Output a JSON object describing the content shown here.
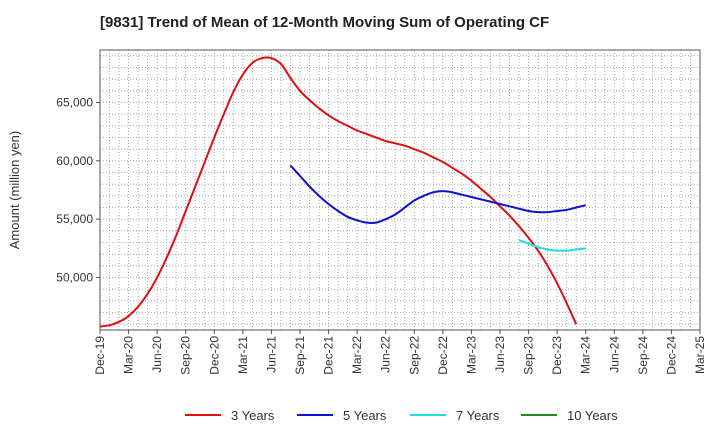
{
  "chart_data": {
    "type": "line",
    "title": "[9831]  Trend of Mean of 12-Month Moving Sum of Operating CF",
    "xlabel": "",
    "ylabel": "Amount (million yen)",
    "ylim": [
      45500,
      69500
    ],
    "yticks": [
      50000,
      55000,
      60000,
      65000
    ],
    "ytick_labels": [
      "50,000",
      "55,000",
      "60,000",
      "65,000"
    ],
    "xlim": [
      "Dec-19",
      "Mar-25"
    ],
    "xtick_labels": [
      "Dec-19",
      "Mar-20",
      "Jun-20",
      "Sep-20",
      "Dec-20",
      "Mar-21",
      "Jun-21",
      "Sep-21",
      "Dec-21",
      "Mar-22",
      "Jun-22",
      "Sep-22",
      "Dec-22",
      "Mar-23",
      "Jun-23",
      "Sep-23",
      "Dec-23",
      "Mar-24",
      "Jun-24",
      "Sep-24",
      "Dec-24",
      "Mar-25"
    ],
    "grid": true,
    "series": [
      {
        "name": "3 Years",
        "color": "#dd1111",
        "points": [
          [
            "Dec-19",
            45800
          ],
          [
            "Jan-20",
            45900
          ],
          [
            "Feb-20",
            46200
          ],
          [
            "Mar-20",
            46700
          ],
          [
            "Apr-20",
            47500
          ],
          [
            "May-20",
            48600
          ],
          [
            "Jun-20",
            50000
          ],
          [
            "Jul-20",
            51700
          ],
          [
            "Aug-20",
            53600
          ],
          [
            "Sep-20",
            55700
          ],
          [
            "Oct-20",
            57800
          ],
          [
            "Nov-20",
            59900
          ],
          [
            "Dec-20",
            62000
          ],
          [
            "Jan-21",
            64000
          ],
          [
            "Feb-21",
            65900
          ],
          [
            "Mar-21",
            67400
          ],
          [
            "Apr-21",
            68400
          ],
          [
            "May-21",
            68800
          ],
          [
            "Jun-21",
            68800
          ],
          [
            "Jul-21",
            68300
          ],
          [
            "Aug-21",
            67100
          ],
          [
            "Sep-21",
            66000
          ],
          [
            "Oct-21",
            65200
          ],
          [
            "Nov-21",
            64500
          ],
          [
            "Dec-21",
            63900
          ],
          [
            "Jan-22",
            63400
          ],
          [
            "Feb-22",
            63000
          ],
          [
            "Mar-22",
            62600
          ],
          [
            "Apr-22",
            62300
          ],
          [
            "May-22",
            62000
          ],
          [
            "Jun-22",
            61700
          ],
          [
            "Jul-22",
            61500
          ],
          [
            "Aug-22",
            61300
          ],
          [
            "Sep-22",
            61000
          ],
          [
            "Oct-22",
            60700
          ],
          [
            "Nov-22",
            60300
          ],
          [
            "Dec-22",
            59900
          ],
          [
            "Jan-23",
            59400
          ],
          [
            "Feb-23",
            58900
          ],
          [
            "Mar-23",
            58300
          ],
          [
            "Apr-23",
            57600
          ],
          [
            "May-23",
            56900
          ],
          [
            "Jun-23",
            56100
          ],
          [
            "Jul-23",
            55300
          ],
          [
            "Aug-23",
            54400
          ],
          [
            "Sep-23",
            53400
          ],
          [
            "Oct-23",
            52300
          ],
          [
            "Nov-23",
            51000
          ],
          [
            "Dec-23",
            49500
          ],
          [
            "Jan-24",
            47800
          ],
          [
            "Feb-24",
            46000
          ]
        ]
      },
      {
        "name": "5 Years",
        "color": "#1111cc",
        "points": [
          [
            "Aug-21",
            59600
          ],
          [
            "Sep-21",
            58700
          ],
          [
            "Oct-21",
            57800
          ],
          [
            "Nov-21",
            57000
          ],
          [
            "Dec-21",
            56300
          ],
          [
            "Jan-22",
            55700
          ],
          [
            "Feb-22",
            55200
          ],
          [
            "Mar-22",
            54900
          ],
          [
            "Apr-22",
            54700
          ],
          [
            "May-22",
            54700
          ],
          [
            "Jun-22",
            55000
          ],
          [
            "Jul-22",
            55400
          ],
          [
            "Aug-22",
            56000
          ],
          [
            "Sep-22",
            56600
          ],
          [
            "Oct-22",
            57000
          ],
          [
            "Nov-22",
            57300
          ],
          [
            "Dec-22",
            57400
          ],
          [
            "Jan-23",
            57300
          ],
          [
            "Feb-23",
            57100
          ],
          [
            "Mar-23",
            56900
          ],
          [
            "Apr-23",
            56700
          ],
          [
            "May-23",
            56500
          ],
          [
            "Jun-23",
            56300
          ],
          [
            "Jul-23",
            56100
          ],
          [
            "Aug-23",
            55900
          ],
          [
            "Sep-23",
            55700
          ],
          [
            "Oct-23",
            55600
          ],
          [
            "Nov-23",
            55600
          ],
          [
            "Dec-23",
            55700
          ],
          [
            "Jan-24",
            55800
          ],
          [
            "Feb-24",
            56000
          ],
          [
            "Mar-24",
            56200
          ]
        ]
      },
      {
        "name": "7 Years",
        "color": "#22dddd",
        "points": [
          [
            "Aug-23",
            53200
          ],
          [
            "Sep-23",
            52900
          ],
          [
            "Oct-23",
            52600
          ],
          [
            "Nov-23",
            52400
          ],
          [
            "Dec-23",
            52300
          ],
          [
            "Jan-24",
            52300
          ],
          [
            "Feb-24",
            52400
          ],
          [
            "Mar-24",
            52500
          ]
        ]
      },
      {
        "name": "10 Years",
        "color": "#228822",
        "points": []
      }
    ],
    "legend": [
      "3 Years",
      "5 Years",
      "7 Years",
      "10 Years"
    ],
    "legend_position": "bottom"
  }
}
